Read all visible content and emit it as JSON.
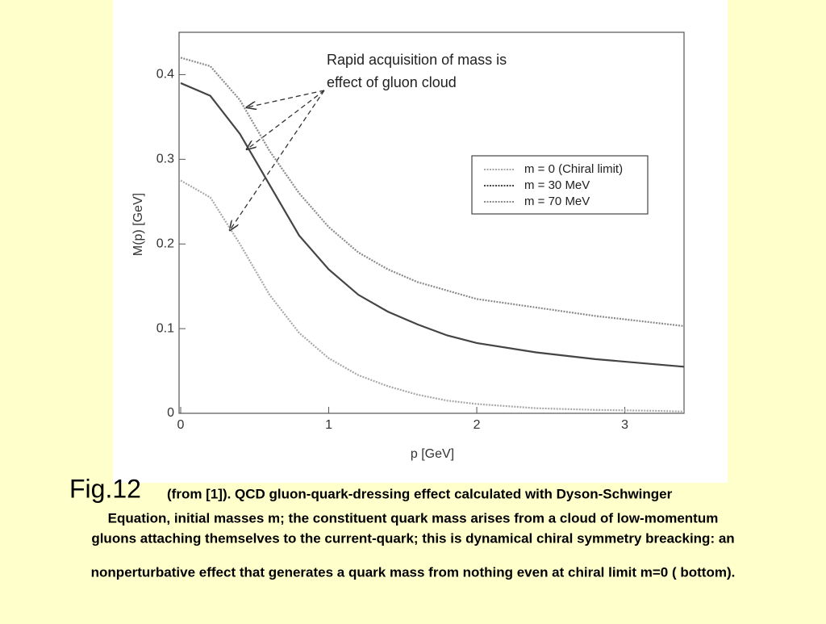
{
  "chart_data": {
    "type": "line",
    "annotation": [
      "Rapid acquisition of mass is",
      "effect of gluon cloud"
    ],
    "xlabel": "p [GeV]",
    "ylabel": "M(p) [GeV]",
    "x": [
      0,
      0.2,
      0.4,
      0.6,
      0.8,
      1.0,
      1.2,
      1.4,
      1.6,
      1.8,
      2.0,
      2.4,
      2.8,
      3.2,
      3.4
    ],
    "series": [
      {
        "name": "m = 0 (Chiral limit)",
        "color": "#a8a8a8",
        "values": [
          0.275,
          0.255,
          0.2,
          0.14,
          0.095,
          0.065,
          0.045,
          0.032,
          0.022,
          0.015,
          0.011,
          0.006,
          0.004,
          0.003,
          0.002
        ]
      },
      {
        "name": "m = 30 MeV",
        "color": "#444444",
        "values": [
          0.39,
          0.375,
          0.33,
          0.27,
          0.21,
          0.17,
          0.14,
          0.12,
          0.105,
          0.092,
          0.083,
          0.072,
          0.064,
          0.058,
          0.055
        ]
      },
      {
        "name": "m = 70 MeV",
        "color": "#8a8a8a",
        "values": [
          0.42,
          0.41,
          0.37,
          0.31,
          0.26,
          0.22,
          0.19,
          0.17,
          0.155,
          0.145,
          0.135,
          0.125,
          0.115,
          0.107,
          0.103
        ]
      }
    ],
    "xlim": [
      0,
      3.4
    ],
    "xticks": [
      0,
      1,
      2,
      3
    ],
    "ylim": [
      0,
      0.45
    ],
    "yticks": [
      0,
      0.1,
      0.2,
      0.3,
      0.4
    ]
  },
  "caption": {
    "label": "Fig.12",
    "lines": [
      "(from [1]). QCD gluon-quark-dressing effect calculated with Dyson-Schwinger",
      "Equation, initial masses m; the constituent quark mass arises from a cloud of low-momentum",
      "gluons attaching themselves to the current-quark; this is dynamical chiral symmetry breacking: an",
      "nonperturbative effect that generates a quark mass from nothing even at chiral limit m=0 ( bottom)."
    ]
  }
}
